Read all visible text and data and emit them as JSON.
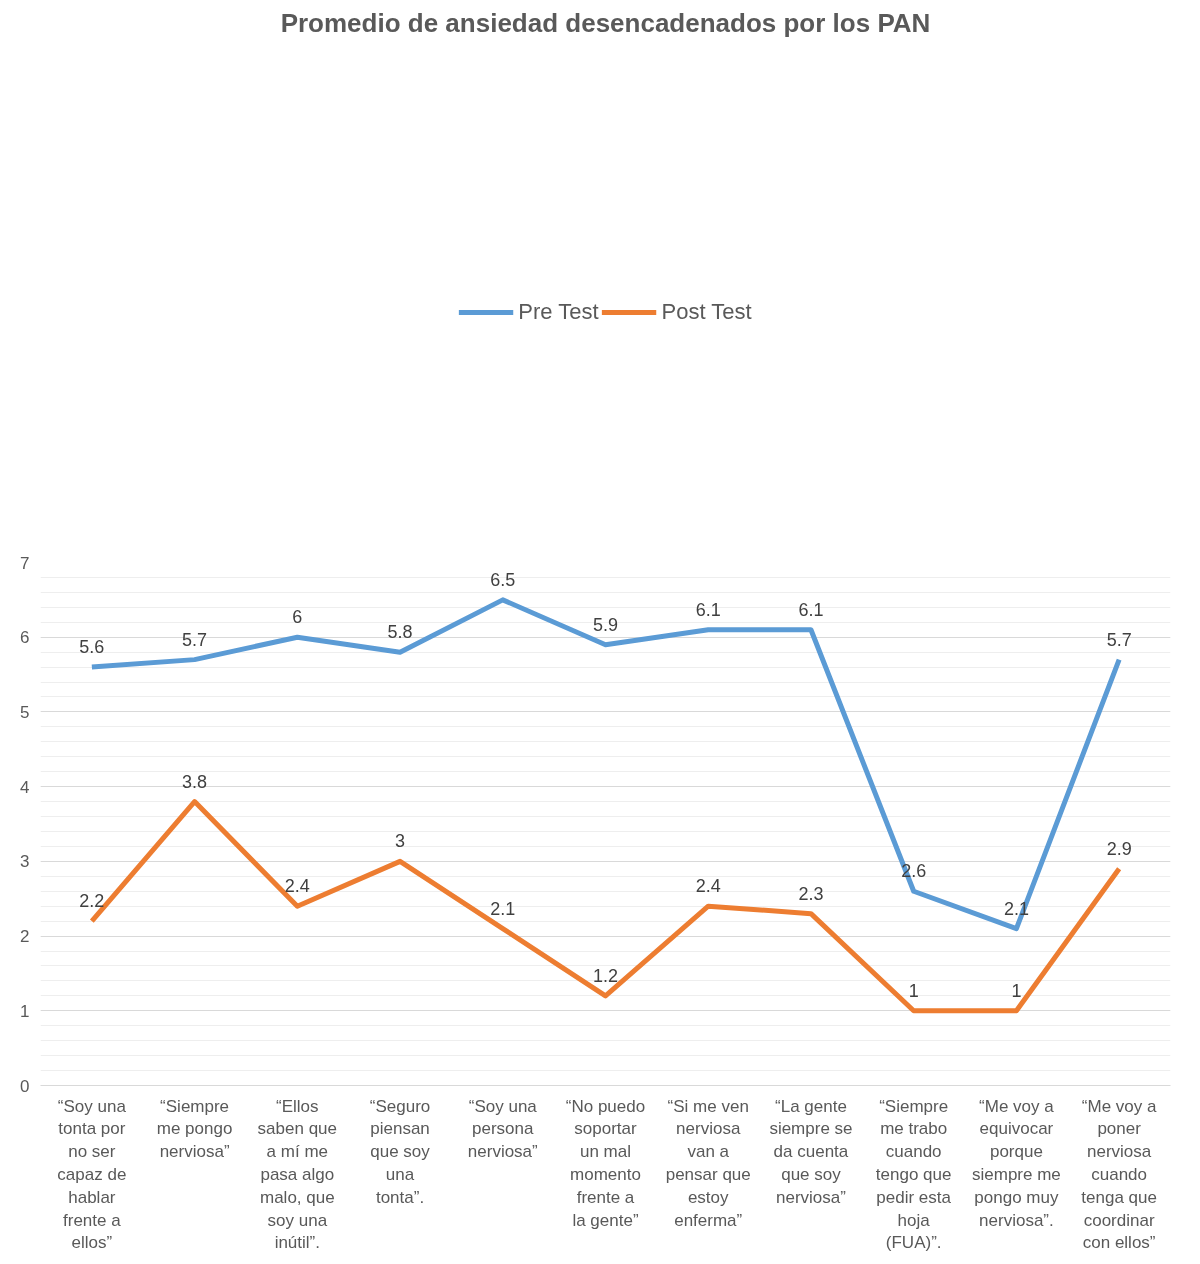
{
  "chart_data": {
    "type": "line",
    "title": "Promedio de ansiedad desencadenados por los PAN",
    "categories": [
      "“Soy una tonta por no ser capaz de hablar frente a ellos”",
      "“Siempre me pongo nerviosa”",
      "“Ellos saben que a mí me pasa algo malo, que soy una inútil”.",
      "“Seguro piensan que soy una tonta”.",
      "“Soy una persona nerviosa”",
      "“No puedo soportar un mal momento frente a la gente”",
      "“Si me ven nerviosa van a pensar que estoy enferma”",
      "“La gente siempre se da cuenta que soy nerviosa”",
      "“Siempre me trabo cuando tengo que pedir esta hoja (FUA)”.",
      "“Me voy a equivocar porque siempre me pongo muy nerviosa”.",
      "“Me voy a poner nerviosa cuando tenga que coordinar con ellos”"
    ],
    "series": [
      {
        "name": "Pre Test",
        "color": "#5b9bd5",
        "values": [
          5.6,
          5.7,
          6,
          5.8,
          6.5,
          5.9,
          6.1,
          6.1,
          2.6,
          2.1,
          5.7
        ]
      },
      {
        "name": "Post Test",
        "color": "#ed7d31",
        "values": [
          2.2,
          3.8,
          2.4,
          3,
          2.1,
          1.2,
          2.4,
          2.3,
          1,
          1,
          2.9
        ]
      }
    ],
    "ylim": [
      0,
      7
    ],
    "yticks": [
      0,
      1,
      2,
      3,
      4,
      5,
      6,
      7
    ],
    "grid": "y",
    "legend": "top",
    "data_labels": true,
    "marker": "none",
    "line_style": "solid"
  }
}
